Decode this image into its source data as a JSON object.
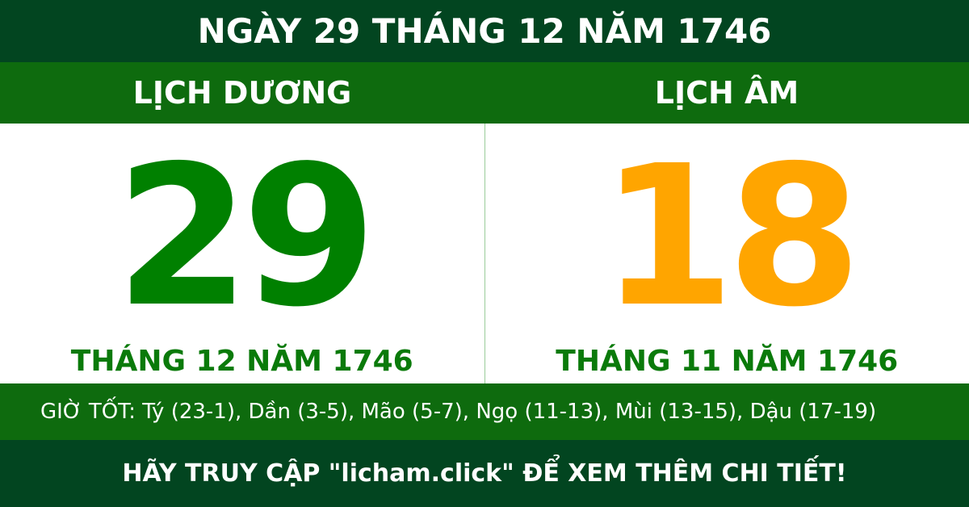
{
  "title": "NGÀY 29 THÁNG 12 NĂM 1746",
  "solar": {
    "heading": "LỊCH DƯƠNG",
    "day": "29",
    "month_year": "THÁNG 12 NĂM 1746",
    "color": "#008000"
  },
  "lunar": {
    "heading": "LỊCH ÂM",
    "day": "18",
    "month_year": "THÁNG 11 NĂM 1746",
    "color": "#ffa500"
  },
  "good_hours": "GIỜ TỐT: Tý (23-1), Dần (3-5), Mão (5-7), Ngọ (11-13), Mùi (13-15), Dậu (17-19)",
  "footer": "HÃY TRUY CẬP \"licham.click\" ĐỂ XEM THÊM CHI TIẾT!"
}
